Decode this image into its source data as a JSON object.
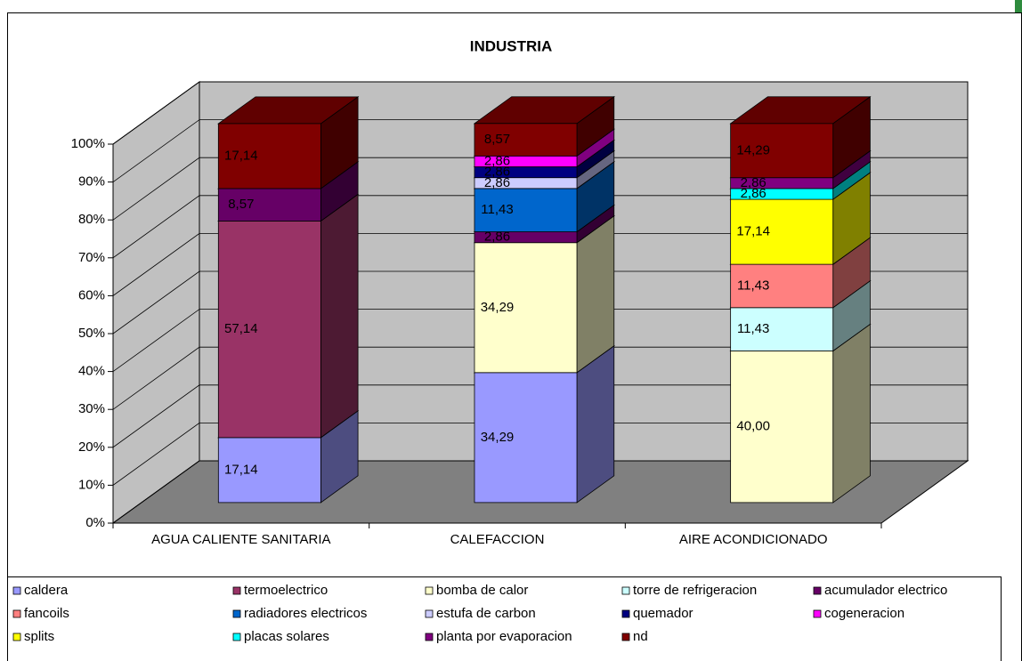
{
  "chart_data": {
    "type": "bar",
    "stacked": true,
    "title": "INDUSTRIA",
    "categories": [
      "AGUA CALIENTE SANITARIA",
      "CALEFACCION",
      "AIRE ACONDICIONADO"
    ],
    "ylim": [
      0,
      100
    ],
    "yticks": [
      {
        "value": 0,
        "label": "0%"
      },
      {
        "value": 10,
        "label": "10%"
      },
      {
        "value": 20,
        "label": "20%"
      },
      {
        "value": 30,
        "label": "30%"
      },
      {
        "value": 40,
        "label": "40%"
      },
      {
        "value": 50,
        "label": "50%"
      },
      {
        "value": 60,
        "label": "60%"
      },
      {
        "value": 70,
        "label": "70%"
      },
      {
        "value": 80,
        "label": "80%"
      },
      {
        "value": 90,
        "label": "90%"
      },
      {
        "value": 100,
        "label": "100%"
      }
    ],
    "grid": true,
    "legend": "bottom",
    "series": [
      {
        "name": "caldera",
        "color": "#9999ff",
        "values": [
          17.14,
          34.29,
          null
        ],
        "value_labels": [
          "17,14",
          "34,29",
          null
        ]
      },
      {
        "name": "termoelectrico",
        "color": "#993366",
        "values": [
          57.14,
          null,
          null
        ],
        "value_labels": [
          "57,14",
          null,
          null
        ]
      },
      {
        "name": "bomba de calor",
        "color": "#ffffcc",
        "values": [
          null,
          34.29,
          40.0
        ],
        "value_labels": [
          null,
          "34,29",
          "40,00"
        ]
      },
      {
        "name": "torre de refrigeracion",
        "color": "#ccffff",
        "values": [
          null,
          null,
          11.43
        ],
        "value_labels": [
          null,
          null,
          "11,43"
        ]
      },
      {
        "name": "acumulador electrico",
        "color": "#660066",
        "values": [
          8.57,
          2.86,
          null
        ],
        "value_labels": [
          "8,57",
          "2,86",
          null
        ]
      },
      {
        "name": "fancoils",
        "color": "#ff8080",
        "values": [
          null,
          null,
          11.43
        ],
        "value_labels": [
          null,
          null,
          "11,43"
        ]
      },
      {
        "name": "radiadores electricos",
        "color": "#0066cc",
        "values": [
          null,
          11.43,
          null
        ],
        "value_labels": [
          null,
          "11,43",
          null
        ]
      },
      {
        "name": "estufa de carbon",
        "color": "#ccccff",
        "values": [
          null,
          2.86,
          null
        ],
        "value_labels": [
          null,
          "2,86",
          null
        ]
      },
      {
        "name": "quemador",
        "color": "#000080",
        "values": [
          null,
          2.86,
          null
        ],
        "value_labels": [
          null,
          "2,86",
          null
        ]
      },
      {
        "name": "cogeneracion",
        "color": "#ff00ff",
        "values": [
          null,
          2.86,
          null
        ],
        "value_labels": [
          null,
          "2,86",
          null
        ]
      },
      {
        "name": "splits",
        "color": "#ffff00",
        "values": [
          null,
          null,
          17.14
        ],
        "value_labels": [
          null,
          null,
          "17,14"
        ]
      },
      {
        "name": "placas solares",
        "color": "#00ffff",
        "values": [
          null,
          null,
          2.86
        ],
        "value_labels": [
          null,
          null,
          "2,86"
        ]
      },
      {
        "name": "planta por evaporacion",
        "color": "#800080",
        "values": [
          null,
          null,
          2.86
        ],
        "value_labels": [
          null,
          null,
          "2,86"
        ]
      },
      {
        "name": "nd",
        "color": "#800000",
        "values": [
          17.14,
          8.57,
          14.29
        ],
        "value_labels": [
          "17,14",
          "8,57",
          "14,29"
        ]
      }
    ]
  }
}
